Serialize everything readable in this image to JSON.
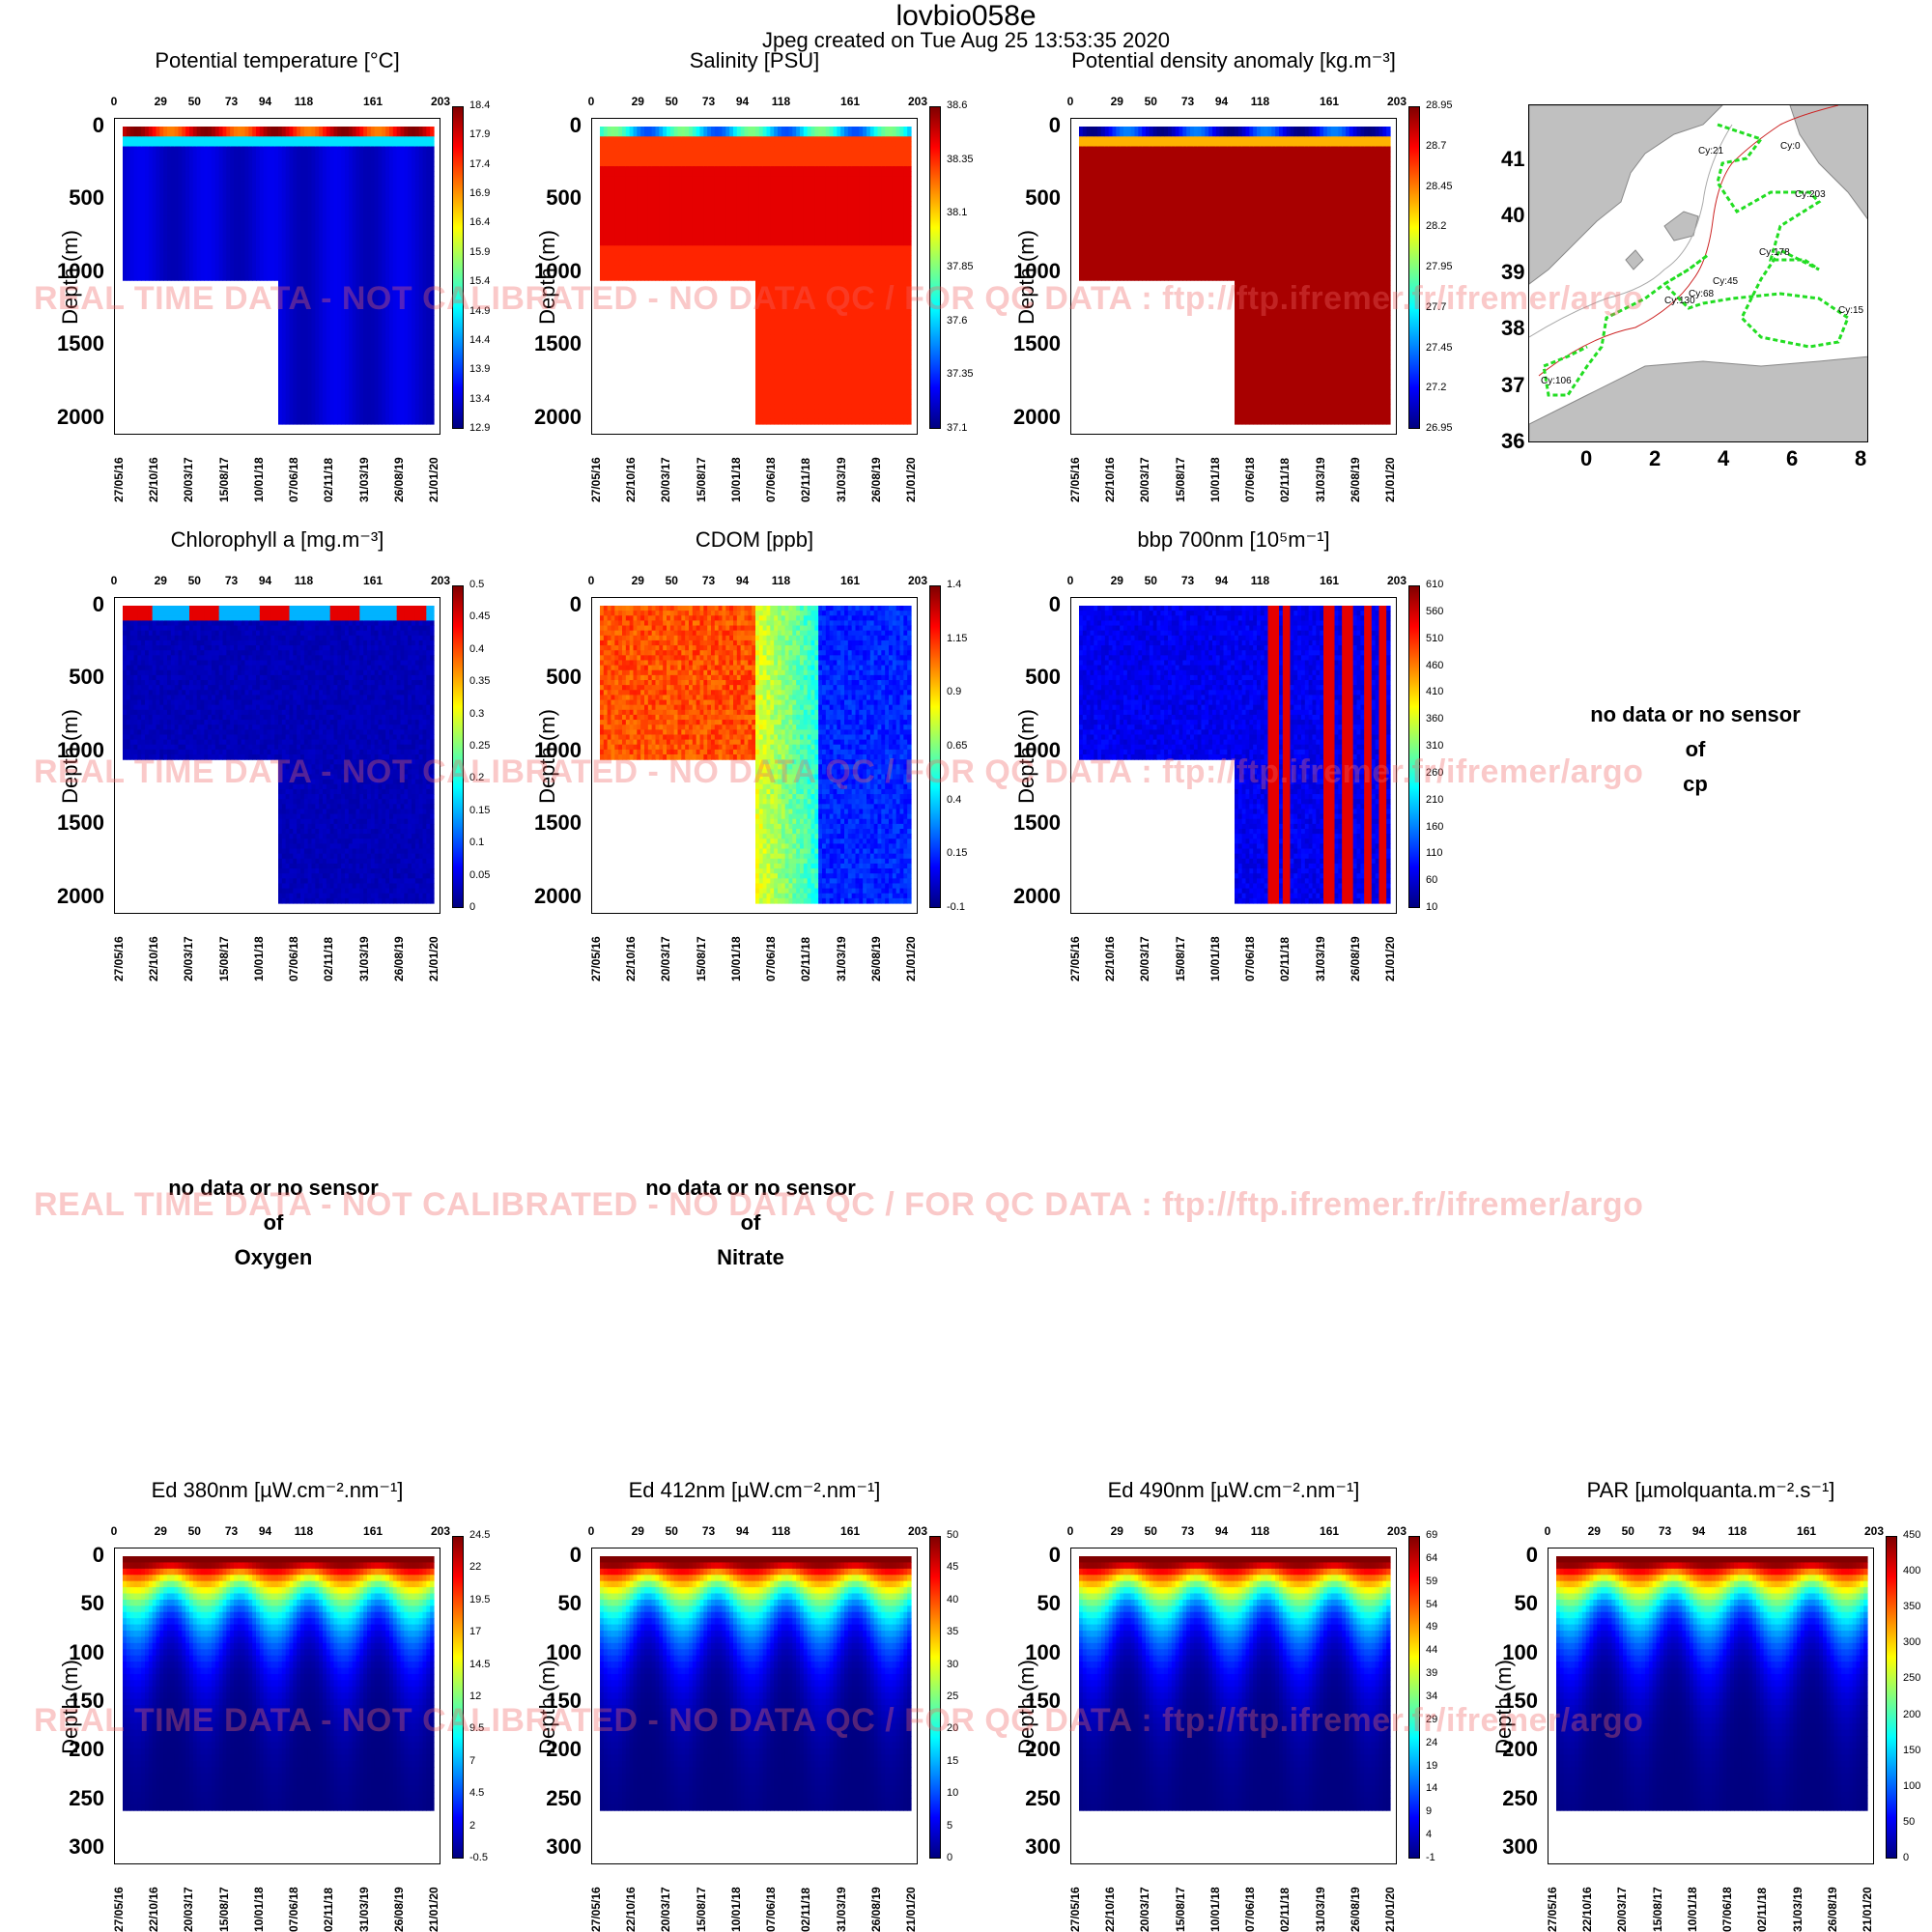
{
  "header": {
    "title": "lovbio058e",
    "subtitle": "Jpeg created on  Tue Aug 25 13:53:35 2020"
  },
  "watermark": "REAL TIME DATA - NOT CALIBRATED - NO DATA QC   /  FOR QC DATA : ftp://ftp.ifremer.fr/ifremer/argo",
  "common": {
    "ylabel": "Depth (m)",
    "cycle_ticks": [
      "0",
      "29",
      "50",
      "73",
      "94",
      "118",
      "161",
      "203"
    ],
    "date_ticks": [
      "27/05/16",
      "22/10/16",
      "20/03/17",
      "15/08/17",
      "10/01/18",
      "07/06/18",
      "02/11/18",
      "31/03/19",
      "26/08/19",
      "21/01/20"
    ],
    "deep_depth_ticks": [
      "0",
      "500",
      "1000",
      "1500",
      "2000"
    ],
    "shallow_depth_ticks": [
      "0",
      "50",
      "100",
      "150",
      "200",
      "250",
      "300"
    ]
  },
  "nodata": {
    "cp": [
      "no data or no sensor",
      "of",
      "cp"
    ],
    "oxygen": [
      "no data or no sensor",
      "of",
      "Oxygen"
    ],
    "nitrate": [
      "no data or no sensor",
      "of",
      "Nitrate"
    ]
  },
  "map": {
    "lat_ticks": [
      "36",
      "37",
      "38",
      "39",
      "40",
      "41"
    ],
    "lon_ticks": [
      "0",
      "2",
      "4",
      "6",
      "8"
    ],
    "cycle_labels": [
      "Cy:0",
      "Cy:21",
      "Cy:203",
      "Cy:178",
      "Cy:45",
      "Cy:68",
      "Cy:130",
      "Cy:106",
      "Cy:15"
    ],
    "track_color": "#22dd22"
  },
  "chart_data": [
    {
      "type": "heatmap",
      "title": "Potential temperature [°C]",
      "xlabel": "",
      "ylabel": "Depth (m)",
      "ylim": [
        2000,
        0
      ],
      "colorbar": [
        "18.4",
        "17.9",
        "17.4",
        "16.9",
        "16.4",
        "15.9",
        "15.4",
        "14.9",
        "14.4",
        "13.9",
        "13.4",
        "12.9"
      ],
      "value_range": [
        12.9,
        18.4
      ],
      "colormap": "jet"
    },
    {
      "type": "heatmap",
      "title": "Salinity [PSU]",
      "xlabel": "",
      "ylabel": "Depth (m)",
      "ylim": [
        2000,
        0
      ],
      "colorbar": [
        "38.6",
        "38.35",
        "38.1",
        "37.85",
        "37.6",
        "37.35",
        "37.1"
      ],
      "value_range": [
        37.1,
        38.6
      ],
      "colormap": "jet"
    },
    {
      "type": "heatmap",
      "title": "Potential density anomaly [kg.m⁻³]",
      "xlabel": "",
      "ylabel": "Depth (m)",
      "ylim": [
        2000,
        0
      ],
      "colorbar": [
        "28.95",
        "28.7",
        "28.45",
        "28.2",
        "27.95",
        "27.7",
        "27.45",
        "27.2",
        "26.95"
      ],
      "value_range": [
        26.95,
        28.95
      ],
      "colormap": "jet_reversed"
    },
    {
      "type": "heatmap",
      "title": "Chlorophyll a [mg.m⁻³]",
      "xlabel": "",
      "ylabel": "Depth (m)",
      "ylim": [
        2000,
        0
      ],
      "colorbar": [
        "0.5",
        "0.45",
        "0.4",
        "0.35",
        "0.3",
        "0.25",
        "0.2",
        "0.15",
        "0.1",
        "0.05",
        "0"
      ],
      "value_range": [
        0,
        0.5
      ],
      "colormap": "jet"
    },
    {
      "type": "heatmap",
      "title": "CDOM  [ppb]",
      "xlabel": "",
      "ylabel": "Depth (m)",
      "ylim": [
        2000,
        0
      ],
      "colorbar": [
        "1.4",
        "1.15",
        "0.9",
        "0.65",
        "0.4",
        "0.15",
        "-0.1"
      ],
      "value_range": [
        -0.1,
        1.4
      ],
      "colormap": "jet"
    },
    {
      "type": "heatmap",
      "title": "bbp 700nm [10⁵m⁻¹]",
      "xlabel": "",
      "ylabel": "Depth (m)",
      "ylim": [
        2000,
        0
      ],
      "colorbar": [
        "610",
        "560",
        "510",
        "460",
        "410",
        "360",
        "310",
        "260",
        "210",
        "160",
        "110",
        "60",
        "10"
      ],
      "value_range": [
        10,
        610
      ],
      "colormap": "jet"
    },
    {
      "type": "heatmap",
      "title": "Ed 380nm [µW.cm⁻².nm⁻¹]",
      "xlabel": "",
      "ylabel": "Depth (m)",
      "ylim": [
        300,
        0
      ],
      "colorbar": [
        "24.5",
        "22",
        "19.5",
        "17",
        "14.5",
        "12",
        "9.5",
        "7",
        "4.5",
        "2",
        "-0.5"
      ],
      "value_range": [
        -0.5,
        24.5
      ],
      "colormap": "jet"
    },
    {
      "type": "heatmap",
      "title": "Ed 412nm [µW.cm⁻².nm⁻¹]",
      "xlabel": "",
      "ylabel": "Depth (m)",
      "ylim": [
        300,
        0
      ],
      "colorbar": [
        "50",
        "45",
        "40",
        "35",
        "30",
        "25",
        "20",
        "15",
        "10",
        "5",
        "0"
      ],
      "value_range": [
        0,
        50
      ],
      "colormap": "jet"
    },
    {
      "type": "heatmap",
      "title": "Ed 490nm [µW.cm⁻².nm⁻¹]",
      "xlabel": "",
      "ylabel": "Depth (m)",
      "ylim": [
        300,
        0
      ],
      "colorbar": [
        "69",
        "64",
        "59",
        "54",
        "49",
        "44",
        "39",
        "34",
        "29",
        "24",
        "19",
        "14",
        "9",
        "4",
        "-1"
      ],
      "value_range": [
        -1,
        69
      ],
      "colormap": "jet"
    },
    {
      "type": "heatmap",
      "title": "PAR [µmolquanta.m⁻².s⁻¹]",
      "xlabel": "",
      "ylabel": "Depth (m)",
      "ylim": [
        300,
        0
      ],
      "colorbar": [
        "450",
        "400",
        "350",
        "300",
        "250",
        "200",
        "150",
        "100",
        "50",
        "0"
      ],
      "value_range": [
        0,
        450
      ],
      "colormap": "jet"
    }
  ]
}
